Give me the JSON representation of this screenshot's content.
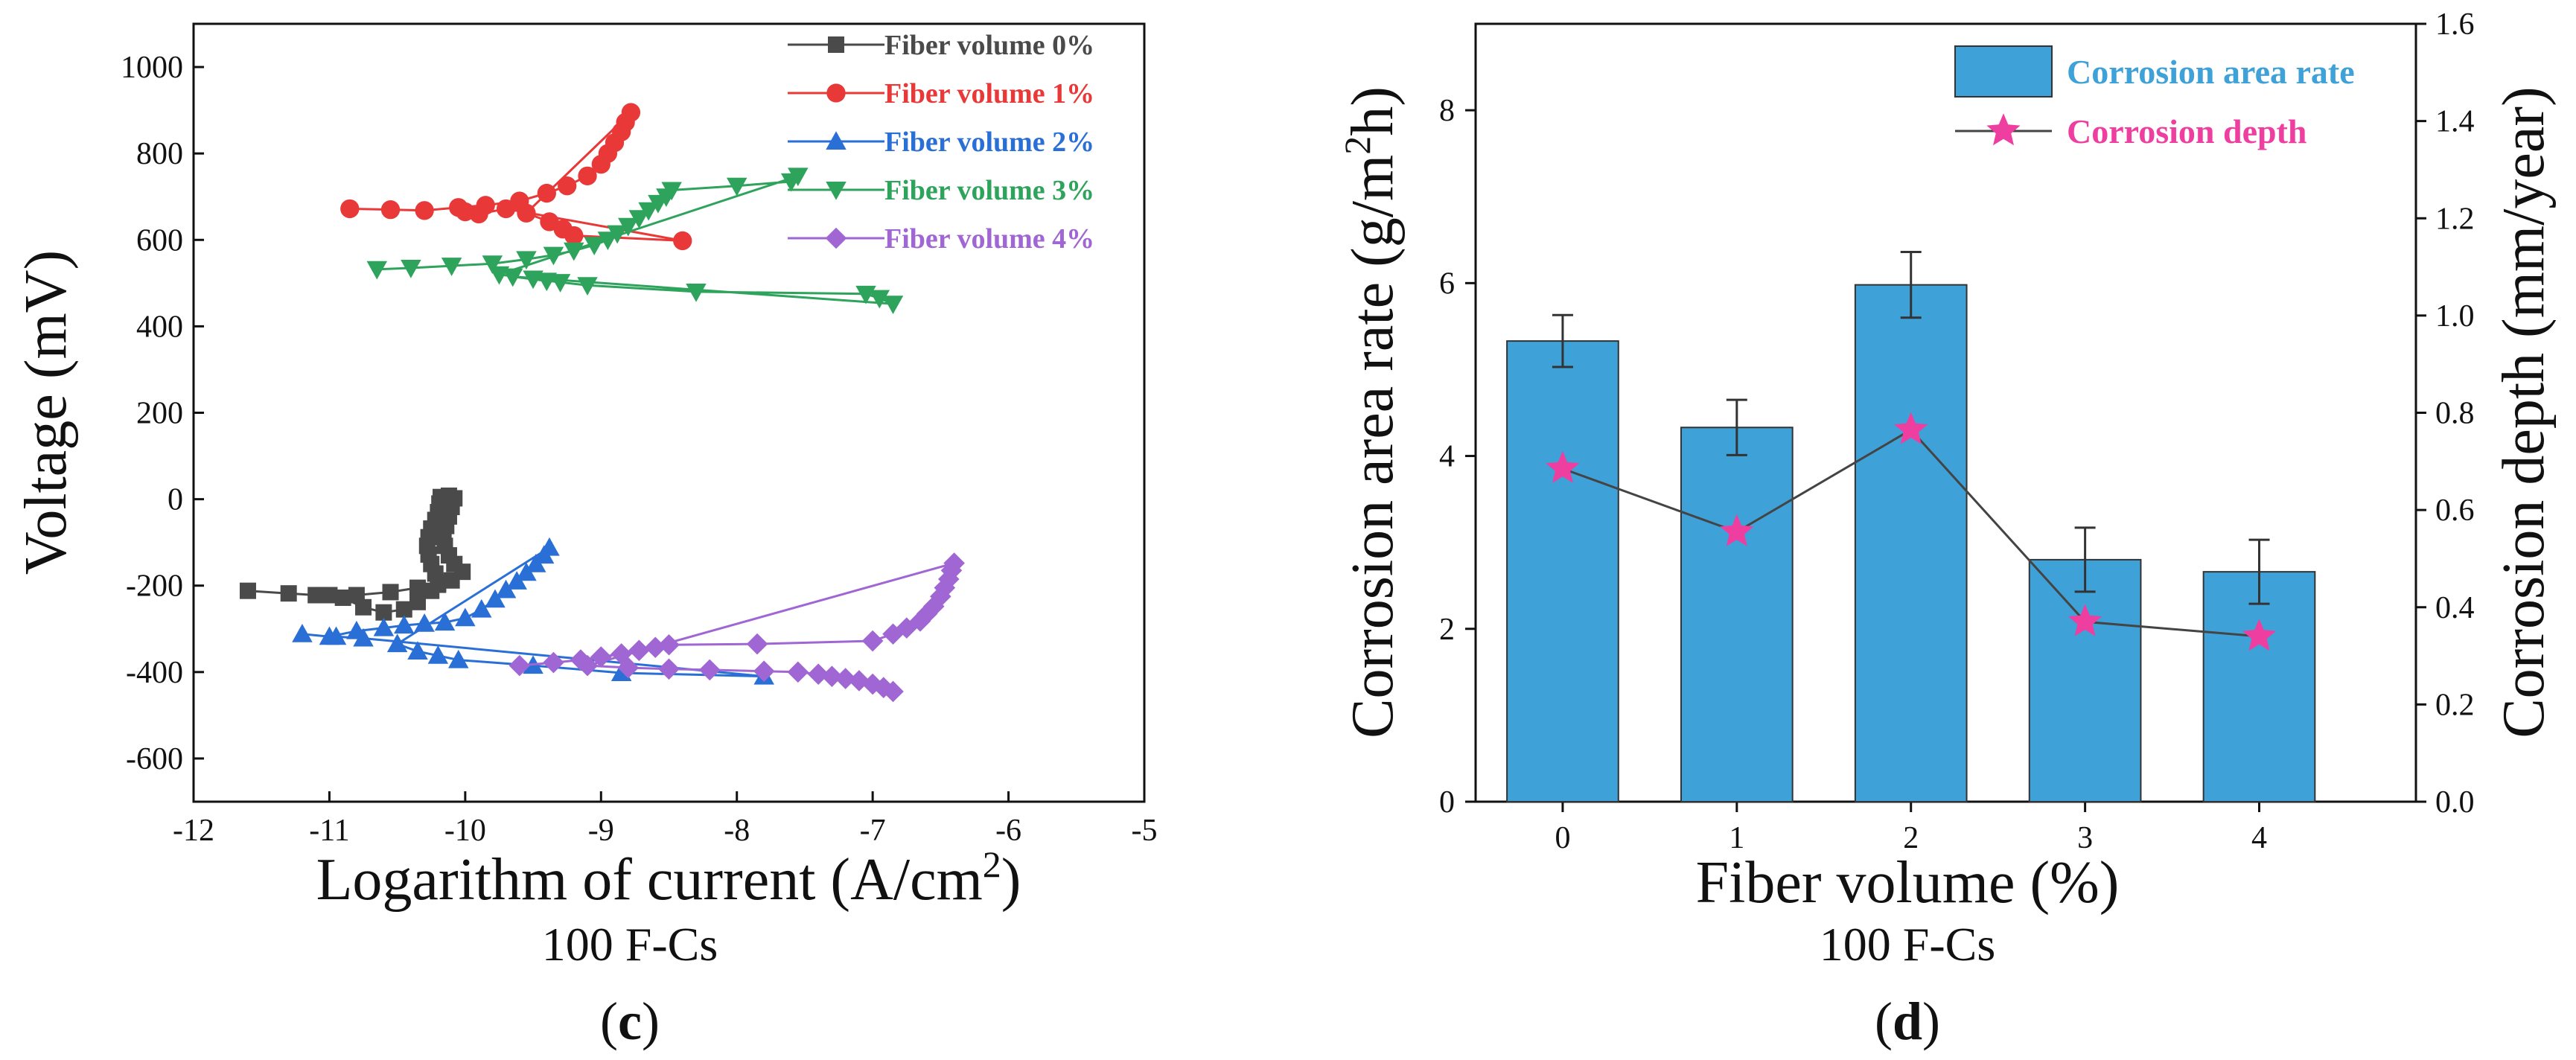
{
  "chart_data": [
    {
      "panel": "c",
      "type": "line",
      "title": "",
      "xlabel": "Logarithm of current (A/cm²)",
      "xlabel_main": "Logarithm of current (A/cm",
      "xlabel_sup": "2",
      "xlabel_tail": ")",
      "ylabel": "Voltage (mV)",
      "subtitle": "100 F-Cs",
      "panel_label": "(c)",
      "panel_letter": "c",
      "xlim": [
        -12,
        -5
      ],
      "ylim": [
        -700,
        1100
      ],
      "x_ticks": [
        -12,
        -11,
        -10,
        -9,
        -8,
        -7,
        -6,
        -5
      ],
      "x_tick_labels": [
        "-12",
        "-11",
        "-10",
        "-9",
        "-8",
        "-7",
        "-6",
        "-5"
      ],
      "y_ticks": [
        -600,
        -400,
        -200,
        0,
        200,
        400,
        600,
        800,
        1000
      ],
      "y_tick_labels": [
        "-600",
        "-400",
        "-200",
        "0",
        "200",
        "400",
        "600",
        "800",
        "1000"
      ],
      "legend_position": "top-right",
      "series": [
        {
          "name": "Fiber volume 0%",
          "color": "#4a4a4a",
          "marker": "square",
          "points": [
            [
              -11.6,
              -212
            ],
            [
              -11.3,
              -218
            ],
            [
              -11.1,
              -222
            ],
            [
              -10.9,
              -228
            ],
            [
              -10.75,
              -250
            ],
            [
              -10.6,
              -262
            ],
            [
              -10.45,
              -255
            ],
            [
              -10.35,
              -238
            ],
            [
              -10.25,
              -212
            ],
            [
              -10.2,
              -195
            ],
            [
              -10.22,
              -172
            ],
            [
              -10.25,
              -150
            ],
            [
              -10.27,
              -128
            ],
            [
              -10.28,
              -108
            ],
            [
              -10.27,
              -88
            ],
            [
              -10.25,
              -68
            ],
            [
              -10.22,
              -48
            ],
            [
              -10.2,
              -30
            ],
            [
              -10.19,
              -10
            ],
            [
              -10.18,
              5
            ],
            [
              -10.12,
              8
            ],
            [
              -10.08,
              2
            ],
            [
              -10.1,
              -18
            ],
            [
              -10.12,
              -40
            ],
            [
              -10.14,
              -62
            ],
            [
              -10.16,
              -85
            ],
            [
              -10.15,
              -108
            ],
            [
              -10.12,
              -130
            ],
            [
              -10.08,
              -150
            ],
            [
              -10.02,
              -168
            ],
            [
              -10.1,
              -188
            ],
            [
              -10.2,
              -198
            ],
            [
              -10.35,
              -205
            ],
            [
              -10.55,
              -215
            ],
            [
              -10.8,
              -222
            ],
            [
              -11.0,
              -222
            ]
          ]
        },
        {
          "name": "Fiber volume 1%",
          "color": "#e83838",
          "marker": "circle",
          "points": [
            [
              -10.85,
              672
            ],
            [
              -10.55,
              670
            ],
            [
              -10.3,
              668
            ],
            [
              -10.05,
              675
            ],
            [
              -9.85,
              680
            ],
            [
              -9.6,
              690
            ],
            [
              -9.4,
              708
            ],
            [
              -9.25,
              725
            ],
            [
              -9.1,
              748
            ],
            [
              -9.0,
              775
            ],
            [
              -8.95,
              800
            ],
            [
              -8.9,
              825
            ],
            [
              -8.85,
              850
            ],
            [
              -8.82,
              872
            ],
            [
              -8.78,
              895
            ],
            [
              -9.55,
              662
            ],
            [
              -9.38,
              642
            ],
            [
              -9.28,
              625
            ],
            [
              -9.2,
              610
            ],
            [
              -8.4,
              598
            ],
            [
              -9.7,
              672
            ],
            [
              -9.9,
              660
            ],
            [
              -10.0,
              665
            ]
          ]
        },
        {
          "name": "Fiber volume 2%",
          "color": "#2a6fd6",
          "marker": "triangle-up",
          "points": [
            [
              -11.2,
              -312
            ],
            [
              -11.0,
              -318
            ],
            [
              -10.8,
              -305
            ],
            [
              -10.6,
              -298
            ],
            [
              -10.45,
              -292
            ],
            [
              -10.3,
              -288
            ],
            [
              -10.15,
              -285
            ],
            [
              -10.0,
              -275
            ],
            [
              -9.88,
              -255
            ],
            [
              -9.78,
              -232
            ],
            [
              -9.7,
              -210
            ],
            [
              -9.62,
              -190
            ],
            [
              -9.55,
              -170
            ],
            [
              -9.48,
              -150
            ],
            [
              -9.42,
              -130
            ],
            [
              -9.38,
              -112
            ],
            [
              -10.5,
              -335
            ],
            [
              -10.35,
              -352
            ],
            [
              -10.2,
              -362
            ],
            [
              -10.05,
              -372
            ],
            [
              -9.5,
              -385
            ],
            [
              -8.85,
              -402
            ],
            [
              -7.8,
              -410
            ],
            [
              -10.75,
              -322
            ],
            [
              -10.95,
              -318
            ]
          ]
        },
        {
          "name": "Fiber volume 3%",
          "color": "#2ea35b",
          "marker": "triangle-down",
          "points": [
            [
              -10.65,
              532
            ],
            [
              -10.4,
              535
            ],
            [
              -10.1,
              540
            ],
            [
              -9.8,
              545
            ],
            [
              -9.55,
              555
            ],
            [
              -9.35,
              565
            ],
            [
              -9.2,
              575
            ],
            [
              -9.05,
              588
            ],
            [
              -8.95,
              600
            ],
            [
              -8.88,
              615
            ],
            [
              -8.8,
              632
            ],
            [
              -8.72,
              650
            ],
            [
              -8.65,
              668
            ],
            [
              -8.58,
              685
            ],
            [
              -8.52,
              700
            ],
            [
              -8.48,
              715
            ],
            [
              -8.0,
              725
            ],
            [
              -7.6,
              735
            ],
            [
              -7.55,
              748
            ],
            [
              -9.75,
              520
            ],
            [
              -9.5,
              510
            ],
            [
              -9.3,
              502
            ],
            [
              -9.1,
              495
            ],
            [
              -8.3,
              480
            ],
            [
              -7.05,
              475
            ],
            [
              -6.95,
              465
            ],
            [
              -6.85,
              452
            ],
            [
              -9.65,
              515
            ],
            [
              -9.4,
              505
            ]
          ]
        },
        {
          "name": "Fiber volume 4%",
          "color": "#a066d3",
          "marker": "diamond",
          "points": [
            [
              -9.6,
              -385
            ],
            [
              -9.35,
              -378
            ],
            [
              -9.15,
              -372
            ],
            [
              -9.0,
              -365
            ],
            [
              -8.85,
              -358
            ],
            [
              -8.72,
              -350
            ],
            [
              -8.6,
              -343
            ],
            [
              -8.5,
              -337
            ],
            [
              -7.85,
              -335
            ],
            [
              -7.0,
              -328
            ],
            [
              -6.85,
              -312
            ],
            [
              -6.75,
              -298
            ],
            [
              -6.65,
              -282
            ],
            [
              -6.6,
              -265
            ],
            [
              -6.55,
              -248
            ],
            [
              -6.5,
              -225
            ],
            [
              -6.47,
              -205
            ],
            [
              -6.44,
              -185
            ],
            [
              -6.42,
              -165
            ],
            [
              -6.4,
              -148
            ],
            [
              -9.1,
              -385
            ],
            [
              -8.8,
              -390
            ],
            [
              -8.5,
              -393
            ],
            [
              -8.2,
              -395
            ],
            [
              -7.8,
              -398
            ],
            [
              -7.55,
              -400
            ],
            [
              -7.4,
              -405
            ],
            [
              -7.3,
              -410
            ],
            [
              -7.2,
              -415
            ],
            [
              -7.1,
              -420
            ],
            [
              -7.0,
              -428
            ],
            [
              -6.92,
              -436
            ],
            [
              -6.85,
              -445
            ]
          ]
        }
      ]
    },
    {
      "panel": "d",
      "type": "bar",
      "title": "",
      "xlabel": "Fiber volume (%)",
      "ylabel": "Corrosion area rate (g/m²h)",
      "ylabel_main": "Corrosion area rate (g/m",
      "ylabel_sup": "2",
      "ylabel_tail": "h)",
      "y2label": "Corrosion depth (mm/year)",
      "subtitle": "100 F-Cs",
      "panel_label": "(d)",
      "panel_letter": "d",
      "categories": [
        "0",
        "1",
        "2",
        "3",
        "4"
      ],
      "ylim": [
        0,
        9
      ],
      "y2lim": [
        0,
        1.6
      ],
      "y_ticks": [
        0,
        2,
        4,
        6,
        8
      ],
      "y_tick_labels": [
        "0",
        "2",
        "4",
        "6",
        "8"
      ],
      "y2_ticks": [
        0,
        0.2,
        0.4,
        0.6,
        0.8,
        1.0,
        1.2,
        1.4,
        1.6
      ],
      "y2_tick_labels": [
        "0.0",
        "0.2",
        "0.4",
        "0.6",
        "0.8",
        "1.0",
        "1.2",
        "1.4",
        "1.6"
      ],
      "legend_position": "top-right",
      "series": [
        {
          "name": "Corrosion area rate",
          "kind": "bar",
          "axis": "left",
          "color": "#3ea1d8",
          "label_color": "#3ea1d8",
          "values": [
            5.33,
            4.33,
            5.98,
            2.8,
            2.66
          ],
          "errors": [
            0.3,
            0.32,
            0.38,
            0.37,
            0.37
          ]
        },
        {
          "name": "Corrosion depth",
          "kind": "line",
          "axis": "right",
          "color": "#ee3fa0",
          "line_color": "#444444",
          "label_color": "#ee3fa0",
          "values": [
            0.685,
            0.555,
            0.765,
            0.37,
            0.34
          ]
        }
      ]
    }
  ]
}
